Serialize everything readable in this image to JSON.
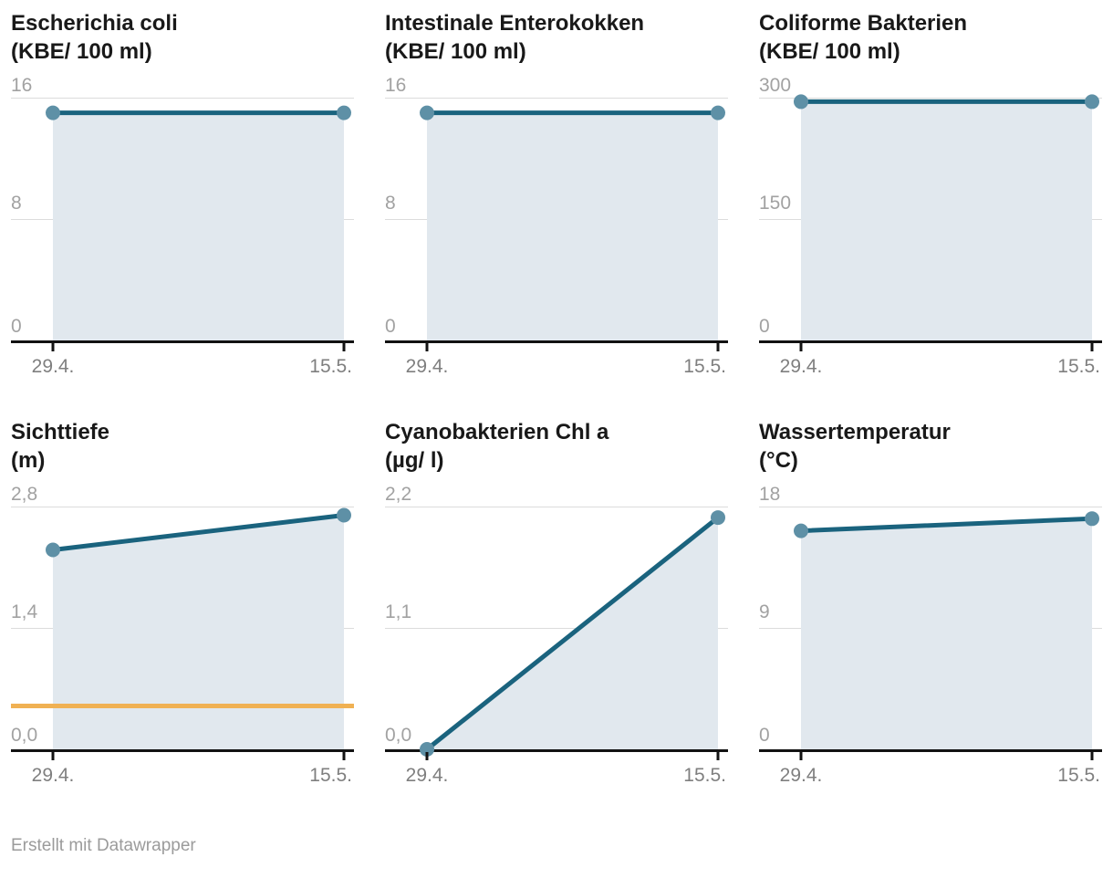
{
  "footer": "Erstellt mit Datawrapper",
  "style": {
    "line_color": "#1a637e",
    "point_color": "#5e90a6",
    "fill_color": "#e1e8ee",
    "threshold_color": "#f0b153",
    "axis_color": "#121212",
    "grid_color": "#dcdcdc"
  },
  "chart_data": [
    {
      "type": "area",
      "title": "Escherichia coli",
      "unit": "(KBE/ 100 ml)",
      "x": [
        "29.4.",
        "15.5."
      ],
      "values": [
        15,
        15
      ],
      "ylim": [
        0,
        16
      ],
      "yticks": [
        16,
        8,
        0
      ],
      "ytick_labels": [
        "16",
        "8",
        "0"
      ],
      "threshold": null
    },
    {
      "type": "area",
      "title": "Intestinale Enterokokken",
      "unit": "(KBE/ 100 ml)",
      "x": [
        "29.4.",
        "15.5."
      ],
      "values": [
        15,
        15
      ],
      "ylim": [
        0,
        16
      ],
      "yticks": [
        16,
        8,
        0
      ],
      "ytick_labels": [
        "16",
        "8",
        "0"
      ],
      "threshold": null
    },
    {
      "type": "area",
      "title": "Coliforme Bakterien",
      "unit": "(KBE/ 100 ml)",
      "x": [
        "29.4.",
        "15.5."
      ],
      "values": [
        295,
        295
      ],
      "ylim": [
        0,
        300
      ],
      "yticks": [
        300,
        150,
        0
      ],
      "ytick_labels": [
        "300",
        "150",
        "0"
      ],
      "threshold": null
    },
    {
      "type": "area",
      "title": "Sichttiefe",
      "unit": "(m)",
      "x": [
        "29.4.",
        "15.5."
      ],
      "values": [
        2.3,
        2.7
      ],
      "ylim": [
        0,
        2.8
      ],
      "yticks": [
        2.8,
        1.4,
        0
      ],
      "ytick_labels": [
        "2,8",
        "1,4",
        "0,0"
      ],
      "threshold": 0.5
    },
    {
      "type": "area",
      "title": "Cyanobakterien Chl a",
      "unit": "(µg/ l)",
      "x": [
        "29.4.",
        "15.5."
      ],
      "values": [
        0,
        2.1
      ],
      "ylim": [
        0,
        2.2
      ],
      "yticks": [
        2.2,
        1.1,
        0
      ],
      "ytick_labels": [
        "2,2",
        "1,1",
        "0,0"
      ],
      "threshold": null
    },
    {
      "type": "area",
      "title": "Wassertemperatur",
      "unit": "(°C)",
      "x": [
        "29.4.",
        "15.5."
      ],
      "values": [
        16.2,
        17.1
      ],
      "ylim": [
        0,
        18
      ],
      "yticks": [
        18,
        9,
        0
      ],
      "ytick_labels": [
        "18",
        "9",
        "0"
      ],
      "threshold": null
    }
  ]
}
